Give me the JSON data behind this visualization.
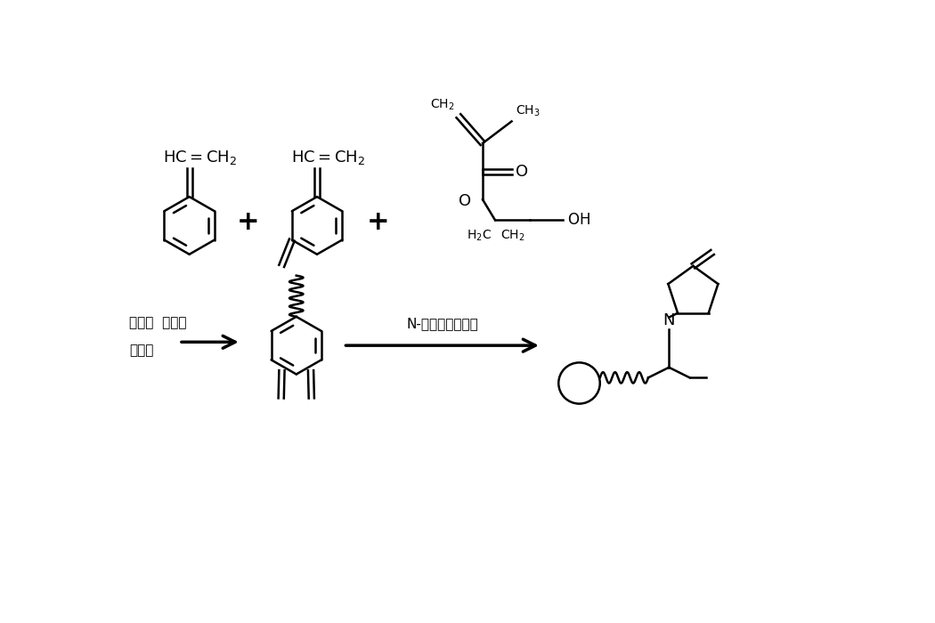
{
  "bg_color": "#ffffff",
  "line_color": "#000000",
  "line_width": 1.8,
  "fig_width": 10.5,
  "fig_height": 7.0,
  "dpi": 100,
  "font_color": "#000000",
  "font_size_label": 11,
  "font_size_small": 9,
  "font_size_medium": 12,
  "font_size_large": 13,
  "text_emul": "乳化剂  引发剂",
  "text_disp": "分散剂",
  "text_nvp": "N-乙烯基呀咏烷锐",
  "plus": "+"
}
